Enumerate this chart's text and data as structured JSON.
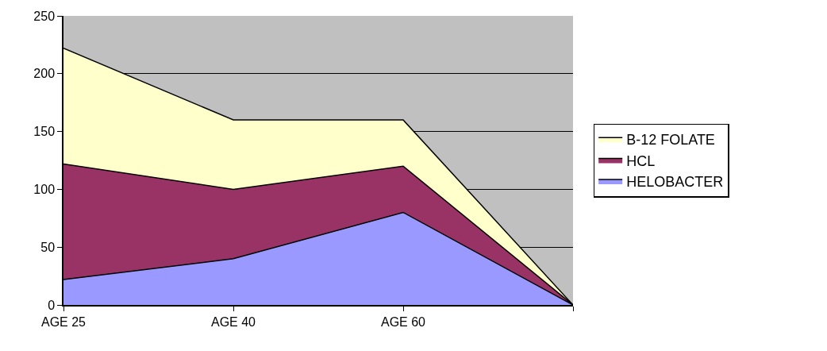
{
  "chart_data": {
    "type": "area",
    "stacked": true,
    "categories": [
      "AGE 25",
      "AGE 40",
      "AGE 60",
      null
    ],
    "series": [
      {
        "name": "HELOBACTER",
        "color": "#9999ff",
        "values": [
          22,
          40,
          80,
          0
        ]
      },
      {
        "name": "HCL",
        "color": "#993366",
        "values": [
          100,
          60,
          40,
          0
        ]
      },
      {
        "name": "B-12 FOLATE",
        "color": "#ffffcc",
        "values": [
          100,
          60,
          40,
          0
        ]
      }
    ],
    "ylim": [
      0,
      250
    ],
    "yticks": [
      0,
      50,
      100,
      150,
      200,
      250
    ],
    "grid": "y",
    "legend": "right"
  }
}
